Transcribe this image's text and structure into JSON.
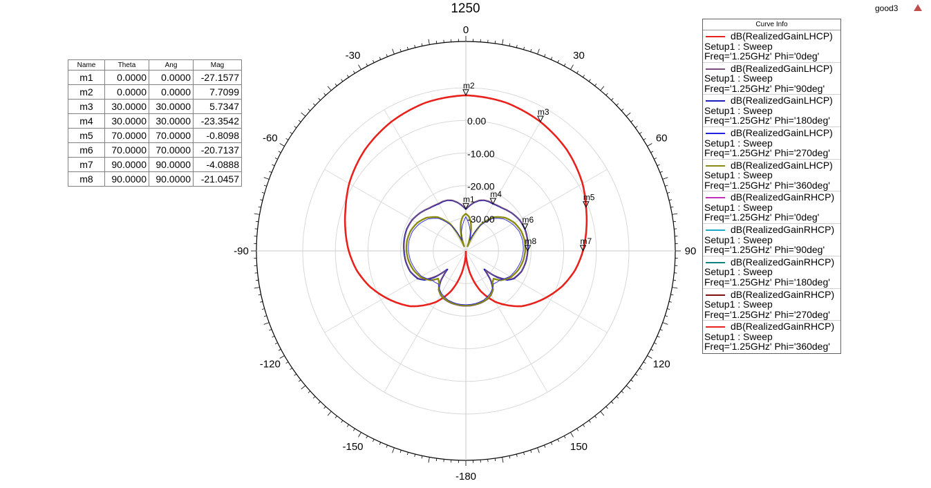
{
  "title": "1250",
  "project_label": "good3",
  "warning_icon": "warning-triangle-icon",
  "marker_table": {
    "headers": [
      "Name",
      "Theta",
      "Ang",
      "Mag"
    ],
    "rows": [
      [
        "m1",
        "0.0000",
        "0.0000",
        "-27.1577"
      ],
      [
        "m2",
        "0.0000",
        "0.0000",
        "7.7099"
      ],
      [
        "m3",
        "30.0000",
        "30.0000",
        "5.7347"
      ],
      [
        "m4",
        "30.0000",
        "30.0000",
        "-23.3542"
      ],
      [
        "m5",
        "70.0000",
        "70.0000",
        "-0.8098"
      ],
      [
        "m6",
        "70.0000",
        "70.0000",
        "-20.7137"
      ],
      [
        "m7",
        "90.0000",
        "90.0000",
        "-4.0888"
      ],
      [
        "m8",
        "90.0000",
        "90.0000",
        "-21.0457"
      ]
    ]
  },
  "curve_info": {
    "header": "Curve Info",
    "entries": [
      {
        "expr": "dB(RealizedGainLHCP)",
        "setup": "Setup1 : Sweep",
        "freq": "Freq='1.25GHz' Phi='0deg'",
        "color": "#e8211c"
      },
      {
        "expr": "dB(RealizedGainLHCP)",
        "setup": "Setup1 : Sweep",
        "freq": "Freq='1.25GHz' Phi='90deg'",
        "color": "#7a4e7a"
      },
      {
        "expr": "dB(RealizedGainLHCP)",
        "setup": "Setup1 : Sweep",
        "freq": "Freq='1.25GHz' Phi='180deg'",
        "color": "#1c1cb8"
      },
      {
        "expr": "dB(RealizedGainLHCP)",
        "setup": "Setup1 : Sweep",
        "freq": "Freq='1.25GHz' Phi='270deg'",
        "color": "#2020e0"
      },
      {
        "expr": "dB(RealizedGainLHCP)",
        "setup": "Setup1 : Sweep",
        "freq": "Freq='1.25GHz' Phi='360deg'",
        "color": "#8a8a10"
      },
      {
        "expr": "dB(RealizedGainRHCP)",
        "setup": "Setup1 : Sweep",
        "freq": "Freq='1.25GHz' Phi='0deg'",
        "color": "#c030c0"
      },
      {
        "expr": "dB(RealizedGainRHCP)",
        "setup": "Setup1 : Sweep",
        "freq": "Freq='1.25GHz' Phi='90deg'",
        "color": "#20a8c8"
      },
      {
        "expr": "dB(RealizedGainRHCP)",
        "setup": "Setup1 : Sweep",
        "freq": "Freq='1.25GHz' Phi='180deg'",
        "color": "#108080"
      },
      {
        "expr": "dB(RealizedGainRHCP)",
        "setup": "Setup1 : Sweep",
        "freq": "Freq='1.25GHz' Phi='270deg'",
        "color": "#801010"
      },
      {
        "expr": "dB(RealizedGainRHCP)",
        "setup": "Setup1 : Sweep",
        "freq": "Freq='1.25GHz' Phi='360deg'",
        "color": "#e8211c"
      }
    ]
  },
  "chart_data": {
    "type": "polar",
    "title": "1250",
    "radial_range": [
      -40,
      10
    ],
    "radial_ticks": [
      -30,
      -20,
      -10,
      0
    ],
    "radial_tick_labels": [
      "-30.00",
      "-20.00",
      "-10.00",
      "0.00"
    ],
    "angle_ticks": [
      0,
      30,
      60,
      90,
      120,
      150,
      180,
      -150,
      -120,
      -90,
      -60,
      -30
    ],
    "angle_tick_labels": [
      "0",
      "30",
      "60",
      "90",
      "120",
      "150",
      "-180",
      "-150",
      "-120",
      "-90",
      "-60",
      "-30"
    ],
    "grid": true,
    "series": [
      {
        "legend_index": 0,
        "color": "#e8211c",
        "width": 2.6,
        "theta": [
          0,
          15,
          30,
          45,
          60,
          70,
          80,
          90,
          100,
          110,
          120,
          135,
          150,
          160,
          170,
          175,
          180
        ],
        "values": [
          7.7,
          7.1,
          5.7,
          3.8,
          1.3,
          -0.8,
          -2.5,
          -4.1,
          -6.0,
          -8.5,
          -11.5,
          -16.0,
          -22.0,
          -27.0,
          -33.5,
          -37.0,
          -40.0
        ]
      },
      {
        "legend_index": 2,
        "color": "#1c1cb8",
        "width": 2.2,
        "theta": [
          0,
          5,
          10,
          15,
          20,
          25,
          30,
          40,
          50,
          60,
          70,
          80,
          90,
          100,
          110,
          120,
          125,
          130,
          135,
          140,
          145,
          150,
          155,
          160,
          165,
          170,
          175,
          180
        ],
        "values": [
          -27.2,
          -26.0,
          -24.9,
          -24.0,
          -23.5,
          -23.3,
          -23.35,
          -22.8,
          -21.8,
          -21.0,
          -20.7,
          -20.8,
          -21.05,
          -21.3,
          -21.8,
          -23.0,
          -24.5,
          -27.5,
          -32.0,
          -28.0,
          -25.5,
          -24.5,
          -23.9,
          -23.6,
          -23.4,
          -23.3,
          -23.2,
          -23.2
        ]
      },
      {
        "legend_index": 1,
        "color": "#7a4e7a",
        "width": 1.4,
        "theta": [
          0,
          5,
          10,
          15,
          20,
          25,
          30,
          40,
          50,
          60,
          70,
          80,
          90,
          100,
          110,
          120,
          125,
          130,
          135,
          140,
          145,
          150,
          155,
          160,
          165,
          170,
          175,
          180
        ],
        "values": [
          -27.1,
          -25.9,
          -24.8,
          -23.9,
          -23.4,
          -23.2,
          -23.2,
          -22.7,
          -21.8,
          -21.0,
          -20.8,
          -20.9,
          -21.15,
          -21.4,
          -21.9,
          -23.2,
          -24.8,
          -28.0,
          -31.5,
          -27.8,
          -25.4,
          -24.4,
          -23.8,
          -23.5,
          -23.3,
          -23.2,
          -23.1,
          -23.1
        ]
      },
      {
        "legend_index": 4,
        "color": "#8a8a10",
        "width": 2.4,
        "theta": [
          0,
          5,
          10,
          15,
          20,
          25,
          30,
          40,
          50,
          60,
          70,
          80,
          90,
          100,
          110,
          120,
          125,
          130,
          135,
          140,
          145,
          150,
          155,
          160,
          165,
          170,
          175,
          180
        ],
        "values": [
          -28.6,
          -29.4,
          -31.2,
          -34.0,
          -38.5,
          -34.5,
          -30.5,
          -26.5,
          -24.2,
          -22.8,
          -22.0,
          -21.7,
          -21.8,
          -22.2,
          -22.9,
          -24.0,
          -25.0,
          -26.0,
          -28.0,
          -27.3,
          -25.6,
          -24.6,
          -24.0,
          -23.7,
          -23.5,
          -23.4,
          -23.3,
          -23.3
        ]
      },
      {
        "legend_index": 3,
        "color": "#2020e0",
        "width": 0.9,
        "theta": [
          0,
          10,
          20,
          30,
          40,
          50,
          60,
          70,
          80,
          90,
          100,
          110,
          120,
          130,
          140,
          150,
          160,
          170,
          180
        ],
        "values": [
          -29.5,
          -33.0,
          -36.5,
          -31.0,
          -27.0,
          -24.8,
          -23.5,
          -22.6,
          -22.3,
          -22.4,
          -22.8,
          -23.5,
          -24.4,
          -26.2,
          -26.8,
          -25.0,
          -24.0,
          -23.6,
          -23.5
        ]
      }
    ],
    "markers": [
      {
        "name": "m1",
        "theta": 0,
        "value": -27.1577
      },
      {
        "name": "m2",
        "theta": 0,
        "value": 7.7099
      },
      {
        "name": "m3",
        "theta": 30,
        "value": 5.7347
      },
      {
        "name": "m4",
        "theta": 30,
        "value": -23.3542
      },
      {
        "name": "m5",
        "theta": 70,
        "value": -0.8098
      },
      {
        "name": "m6",
        "theta": 70,
        "value": -20.7137
      },
      {
        "name": "m7",
        "theta": 90,
        "value": -4.0888
      },
      {
        "name": "m8",
        "theta": 90,
        "value": -21.0457
      }
    ]
  }
}
